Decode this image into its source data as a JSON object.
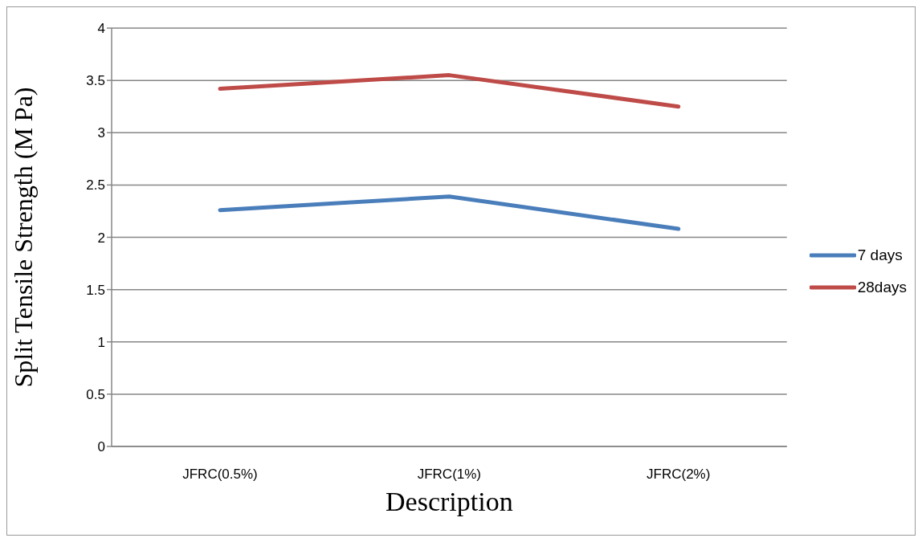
{
  "chart_data": {
    "type": "line",
    "xlabel": "Description",
    "ylabel": "Split Tensile Strength (M Pa)",
    "categories": [
      "JFRC(0.5%)",
      "JFRC(1%)",
      "JFRC(2%)"
    ],
    "series": [
      {
        "name": "7 days",
        "color": "#4a7ebb",
        "values": [
          2.26,
          2.39,
          2.08
        ]
      },
      {
        "name": "28days",
        "color": "#be4b48",
        "values": [
          3.42,
          3.55,
          3.25
        ]
      }
    ],
    "ylim": [
      0,
      4
    ],
    "yticks": [
      0,
      0.5,
      1,
      1.5,
      2,
      2.5,
      3,
      3.5,
      4
    ],
    "grid": "y",
    "legend": "right",
    "marker": "none",
    "line_style": "solid"
  }
}
